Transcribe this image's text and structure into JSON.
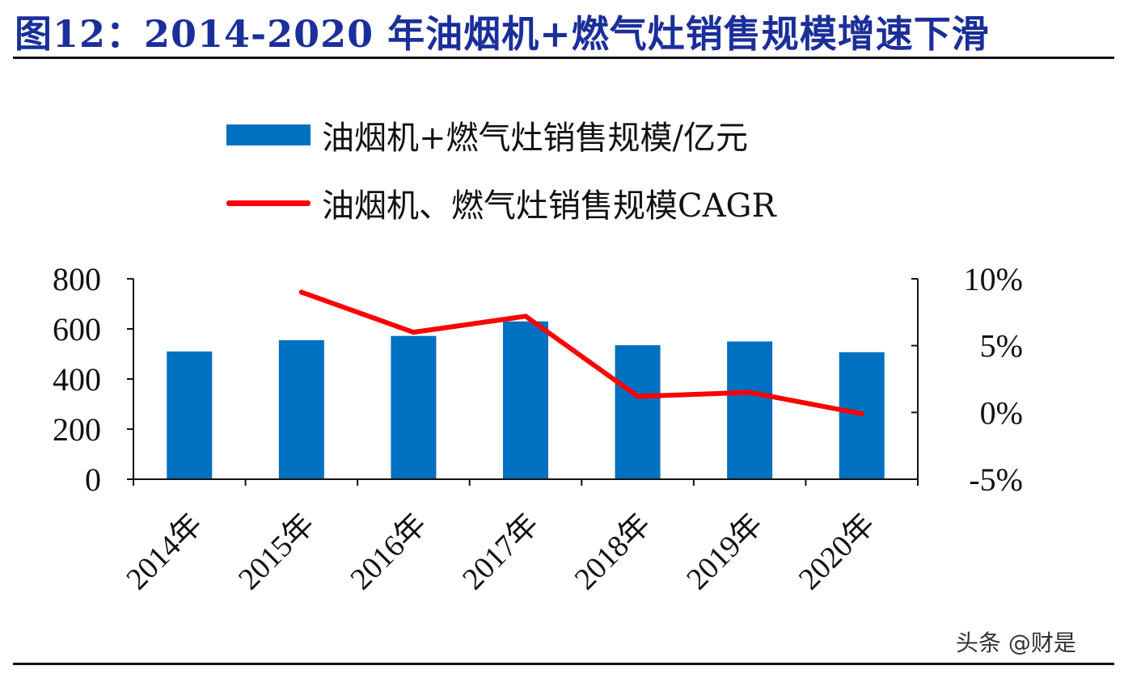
{
  "figure": {
    "title": "图12：2014-2020 年油烟机+燃气灶销售规模增速下滑"
  },
  "watermark": "头条 @财是",
  "chart_data": {
    "type": "bar",
    "categories": [
      "2014年",
      "2015年",
      "2016年",
      "2017年",
      "2018年",
      "2019年",
      "2020年"
    ],
    "series": [
      {
        "name": "油烟机+燃气灶销售规模/亿元",
        "type": "bar",
        "axis": "left",
        "color": "#0070c0",
        "values": [
          510,
          555,
          572,
          630,
          535,
          550,
          507
        ]
      },
      {
        "name": "油烟机、燃气灶销售规模CAGR",
        "type": "line",
        "axis": "right",
        "color": "#ff0000",
        "values": [
          null,
          9.0,
          6.0,
          7.2,
          1.2,
          1.5,
          -0.1
        ]
      }
    ],
    "y_left": {
      "ylim": [
        0,
        800
      ],
      "ticks": [
        0,
        200,
        400,
        600,
        800
      ],
      "tick_labels": [
        "0",
        "200",
        "400",
        "600",
        "800"
      ]
    },
    "y_right": {
      "ylim": [
        -5,
        10
      ],
      "ticks": [
        -5,
        0,
        5,
        10
      ],
      "tick_labels": [
        "-5%",
        "0%",
        "5%",
        "10%"
      ]
    },
    "grid": false,
    "legend_position": "top-center"
  }
}
